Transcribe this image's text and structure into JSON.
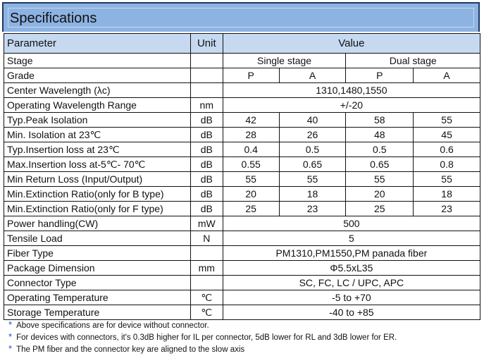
{
  "title": "Specifications",
  "header": {
    "parameter": "Parameter",
    "unit": "Unit",
    "value": "Value"
  },
  "stage": {
    "label": "Stage",
    "single": "Single  stage",
    "dual": "Dual stage"
  },
  "grade": {
    "label": "Grade",
    "g1": "P",
    "g2": "A",
    "g3": "P",
    "g4": "A"
  },
  "rows4": [
    {
      "p": "Typ.Peak Isolation",
      "u": "dB",
      "v": [
        "42",
        "40",
        "58",
        "55"
      ]
    },
    {
      "p": "Min. Isolation at 23℃",
      "u": "dB",
      "v": [
        "28",
        "26",
        "48",
        "45"
      ]
    },
    {
      "p": "Typ.Insertion loss  at 23℃",
      "u": "dB",
      "v": [
        "0.4",
        "0.5",
        "0.5",
        "0.6"
      ]
    },
    {
      "p": "Max.Insertion loss  at-5℃- 70℃",
      "u": "dB",
      "v": [
        "0.55",
        "0.65",
        "0.65",
        "0.8"
      ]
    },
    {
      "p": "Min Return Loss (Input/Output)",
      "u": "dB",
      "v": [
        "55",
        "55",
        "55",
        "55"
      ]
    },
    {
      "p": "Min.Extinction Ratio(only for B type)",
      "u": "dB",
      "v": [
        "20",
        "18",
        "20",
        "18"
      ]
    },
    {
      "p": "Min.Extinction Ratio(only for F type)",
      "u": "dB",
      "v": [
        "25",
        "23",
        "25",
        "23"
      ]
    }
  ],
  "rowsA": [
    {
      "p": "Center Wavelength (λc)",
      "u": "",
      "v": "1310,1480,1550"
    },
    {
      "p": "Operating Wavelength Range",
      "u": "nm",
      "v": "+/-20"
    }
  ],
  "rowsB": [
    {
      "p": "Power handling(CW)",
      "u": "mW",
      "v": "500"
    },
    {
      "p": "Tensile Load",
      "u": "N",
      "v": "5"
    },
    {
      "p": "Fiber Type",
      "u": "",
      "v": "PM1310,PM1550,PM panada fiber"
    },
    {
      "p": "Package Dimension",
      "u": "mm",
      "v": "Φ5.5xL35"
    },
    {
      "p": "Connector Type",
      "u": "",
      "v": "SC, FC, LC / UPC, APC"
    },
    {
      "p": "Operating Temperature",
      "u": "℃",
      "v": "-5 to +70"
    },
    {
      "p": "Storage Temperature",
      "u": "℃",
      "v": "-40 to +85"
    }
  ],
  "notes": [
    "Above specifications are for device without connector.",
    "For devices with connectors, it's 0.3dB higher for IL per connector, 5dB lower for RL and 3dB lower for ER.",
    "The PM fiber and the connector key are aligned to the slow axis"
  ],
  "star": "*"
}
